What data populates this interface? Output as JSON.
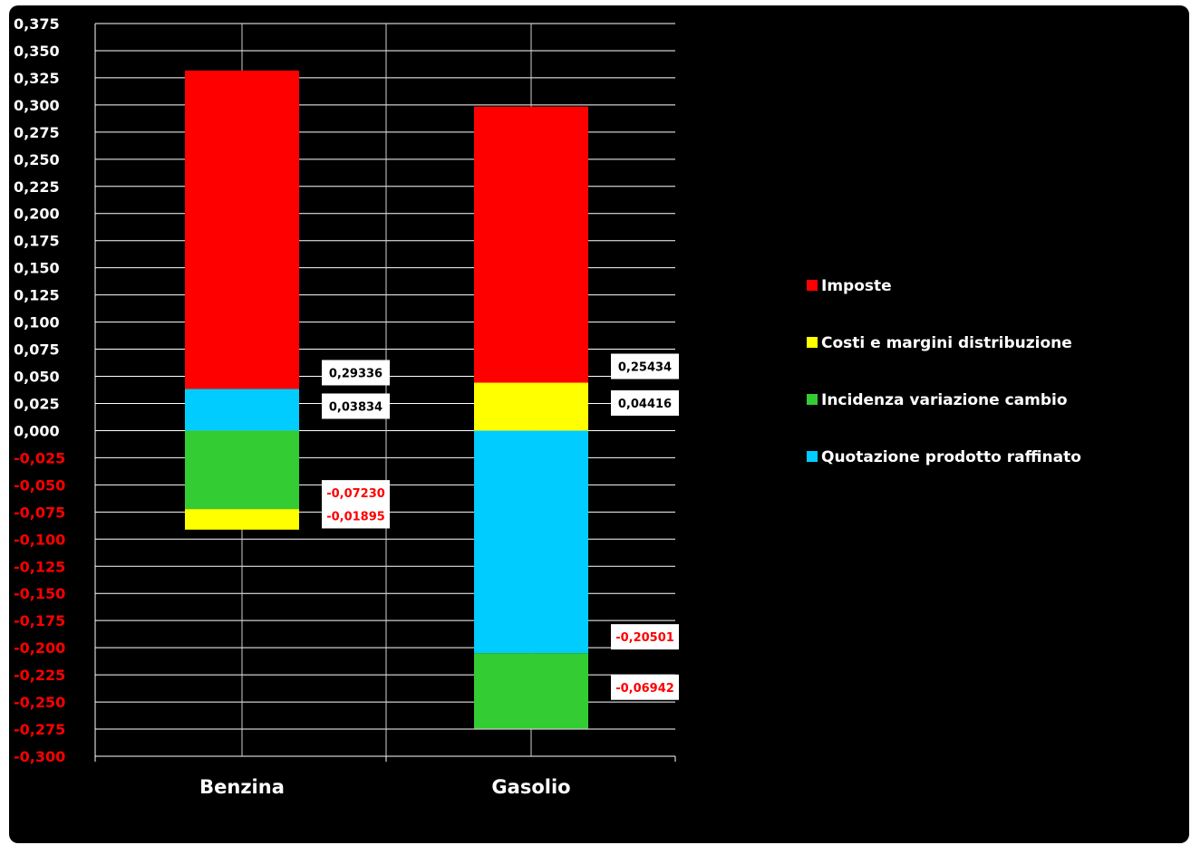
{
  "chart_data": {
    "type": "bar",
    "stacked": true,
    "categories": [
      "Benzina",
      "Gasolio"
    ],
    "series": [
      {
        "name": "Imposte",
        "color": "#ff0000",
        "values": [
          0.29336,
          0.25434
        ]
      },
      {
        "name": "Costi e margini distribuzione",
        "color": "#ffff00",
        "values": [
          -0.01895,
          0.04416
        ]
      },
      {
        "name": "Incidenza variazione cambio",
        "color": "#33cc33",
        "values": [
          -0.0723,
          -0.06942
        ]
      },
      {
        "name": "Quotazione prodotto raffinato",
        "color": "#00ccff",
        "values": [
          0.03834,
          -0.20501
        ]
      }
    ],
    "data_labels": [
      {
        "category": "Benzina",
        "series": "Imposte",
        "text": "0,29336"
      },
      {
        "category": "Benzina",
        "series": "Quotazione prodotto raffinato",
        "text": "0,03834"
      },
      {
        "category": "Benzina",
        "series": "Incidenza variazione cambio",
        "text": "-0,07230"
      },
      {
        "category": "Benzina",
        "series": "Costi e margini distribuzione",
        "text": "-0,01895"
      },
      {
        "category": "Gasolio",
        "series": "Imposte",
        "text": "0,25434"
      },
      {
        "category": "Gasolio",
        "series": "Costi e margini distribuzione",
        "text": "0,04416"
      },
      {
        "category": "Gasolio",
        "series": "Quotazione prodotto raffinato",
        "text": "-0,20501"
      },
      {
        "category": "Gasolio",
        "series": "Incidenza variazione cambio",
        "text": "-0,06942"
      }
    ],
    "ylim": [
      -0.3,
      0.375
    ],
    "ytick_step": 0.025,
    "ytick_labels": [
      "0,375",
      "0,350",
      "0,325",
      "0,300",
      "0,275",
      "0,250",
      "0,225",
      "0,200",
      "0,175",
      "0,150",
      "0,125",
      "0,100",
      "0,075",
      "0,050",
      "0,025",
      "0,000",
      "-0,025",
      "-0,050",
      "-0,075",
      "-0,100",
      "-0,125",
      "-0,150",
      "-0,175",
      "-0,200",
      "-0,225",
      "-0,250",
      "-0,275",
      "-0,300"
    ],
    "legend_order": [
      "Imposte",
      "Costi e margini distribuzione",
      "Incidenza variazione cambio",
      "Quotazione prodotto raffinato"
    ],
    "legend_position": "right",
    "grid": true,
    "background": "#000000",
    "positive_tick_color": "#ffffff",
    "negative_tick_color": "#ff0000",
    "positive_label_color": "#000000",
    "negative_label_color": "#ff0000"
  }
}
